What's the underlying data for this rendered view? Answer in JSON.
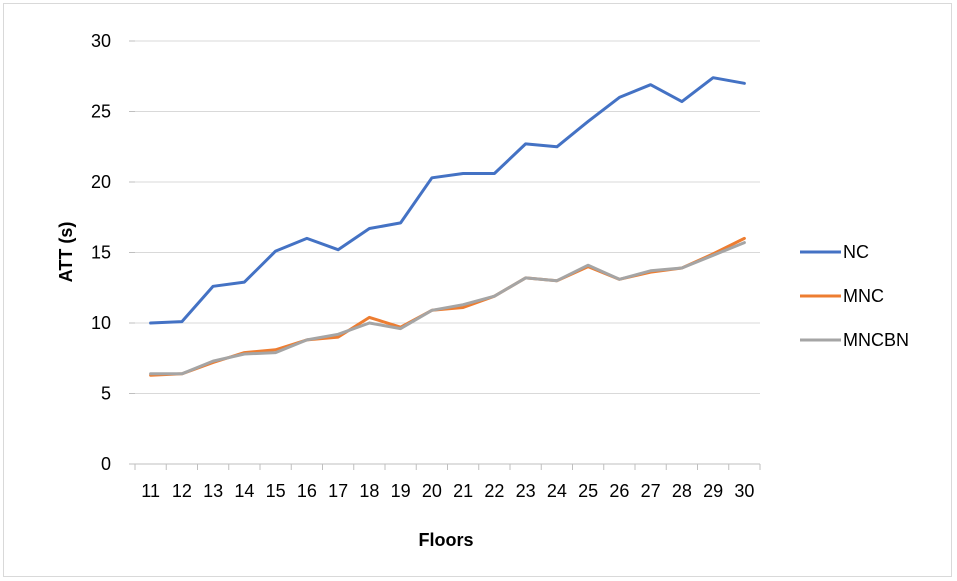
{
  "chart_data": {
    "type": "line",
    "title": "",
    "xlabel": "Floors",
    "ylabel": "ATT (s)",
    "ylim": [
      0,
      30
    ],
    "yticks": [
      0,
      5,
      10,
      15,
      20,
      25,
      30
    ],
    "grid": true,
    "legend_position": "right",
    "categories": [
      "11",
      "12",
      "13",
      "14",
      "15",
      "16",
      "17",
      "18",
      "19",
      "20",
      "21",
      "22",
      "23",
      "24",
      "25",
      "26",
      "27",
      "28",
      "29",
      "30"
    ],
    "series": [
      {
        "name": "NC",
        "color": "#4472C4",
        "values": [
          10.0,
          10.1,
          12.6,
          12.9,
          15.1,
          16.0,
          15.2,
          16.7,
          17.1,
          20.3,
          20.6,
          20.6,
          22.7,
          22.5,
          24.3,
          26.0,
          26.9,
          25.7,
          27.4,
          27.0
        ]
      },
      {
        "name": "MNC",
        "color": "#ED7D31",
        "values": [
          6.3,
          6.4,
          7.2,
          7.9,
          8.1,
          8.8,
          9.0,
          10.4,
          9.7,
          10.9,
          11.1,
          11.9,
          13.2,
          13.0,
          14.0,
          13.1,
          13.6,
          13.9,
          14.9,
          16.0
        ]
      },
      {
        "name": "MNCBN",
        "color": "#A5A5A5",
        "values": [
          6.4,
          6.4,
          7.3,
          7.8,
          7.9,
          8.8,
          9.2,
          10.0,
          9.6,
          10.9,
          11.3,
          11.9,
          13.2,
          13.0,
          14.1,
          13.1,
          13.7,
          13.9,
          14.8,
          15.7
        ]
      }
    ]
  }
}
